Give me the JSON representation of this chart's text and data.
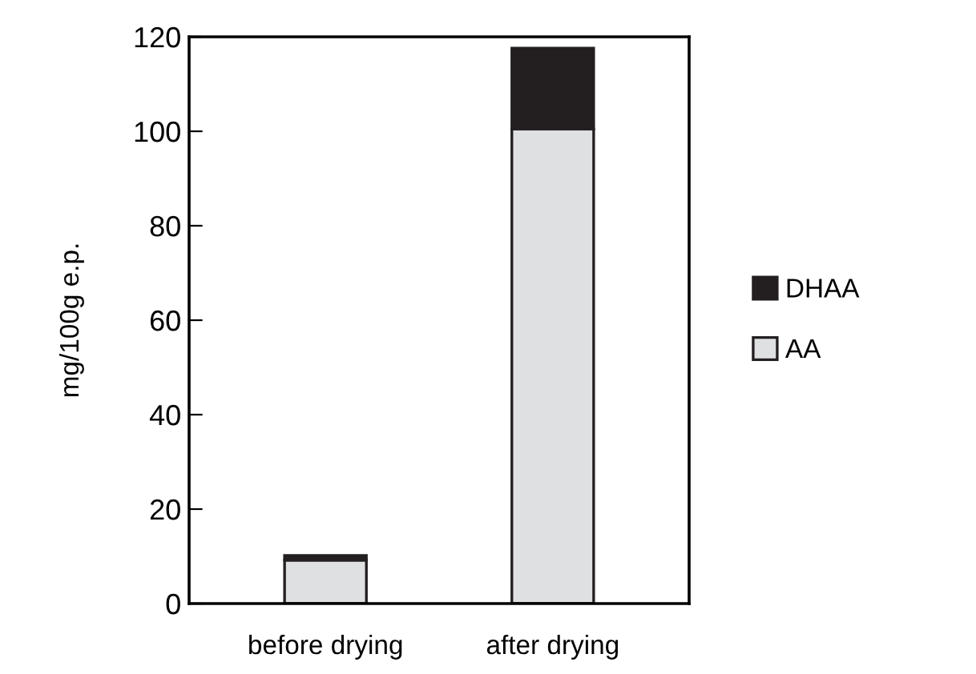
{
  "chart_data": {
    "type": "bar",
    "stacked": true,
    "ylabel": "mg/100g e.p.",
    "categories": [
      "before drying",
      "after drying"
    ],
    "series": [
      {
        "name": "AA",
        "color": "#dfe0e2",
        "values": [
          9.2,
          100.5
        ]
      },
      {
        "name": "DHAA",
        "color": "#231f20",
        "values": [
          1.0,
          17.1
        ]
      }
    ],
    "ylim": [
      0,
      120
    ],
    "yticks": [
      0,
      20,
      40,
      60,
      80,
      100,
      120
    ],
    "grid": false,
    "legend": "right"
  }
}
